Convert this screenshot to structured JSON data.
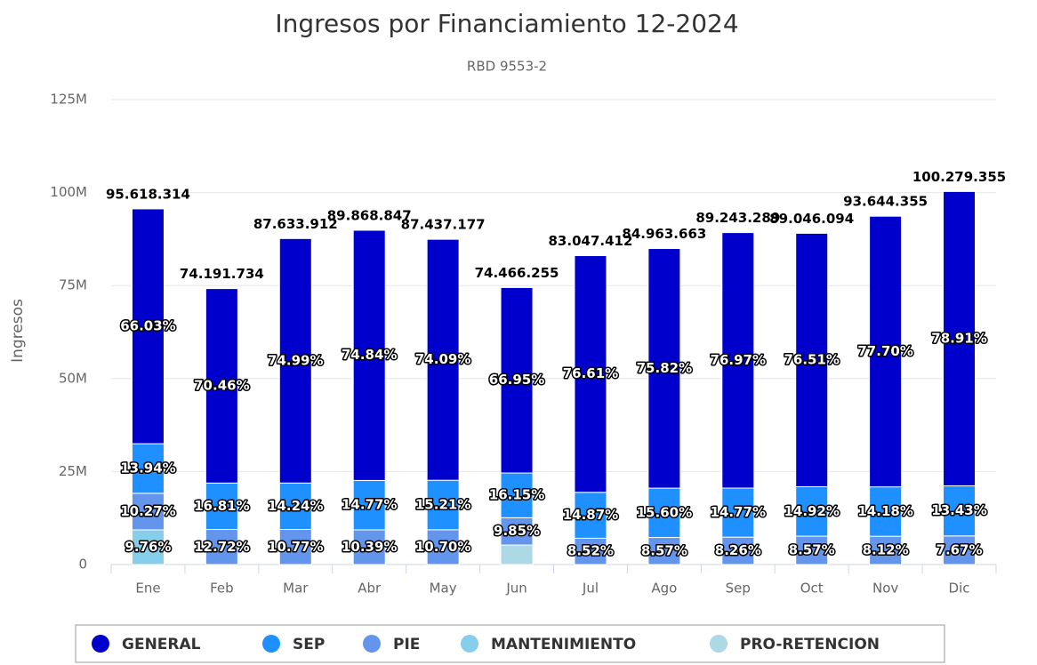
{
  "chart_data": {
    "type": "stacked_bar",
    "title": "Ingresos por Financiamiento 12-2024",
    "subtitle": "RBD 9553-2",
    "y_label": "Ingresos",
    "categories": [
      "Ene",
      "Feb",
      "Mar",
      "Abr",
      "May",
      "Jun",
      "Jul",
      "Ago",
      "Sep",
      "Oct",
      "Nov",
      "Dic"
    ],
    "ylim": [
      0,
      125000000
    ],
    "yticks": [
      0,
      {
        "value": 25000000,
        "label": "25M"
      },
      {
        "value": 50000000,
        "label": "50M"
      },
      {
        "value": 75000000,
        "label": "75M"
      },
      {
        "value": 100000000,
        "label": "100M"
      },
      {
        "value": 125000000,
        "label": "125M"
      }
    ],
    "grid": true,
    "stack_labels": [
      "95.618.314",
      "74.191.734",
      "87.633.912",
      "89.868.847",
      "87.437.177",
      "74.466.255",
      "83.047.412",
      "84.963.663",
      "89.243.289",
      "89.046.094",
      "93.644.355",
      "100.279.355"
    ],
    "series": [
      {
        "name": "GENERAL",
        "color": "#0000cd",
        "values": [
          63137000,
          52276000,
          65717000,
          67258000,
          64782000,
          49855000,
          63622000,
          64420000,
          68690000,
          68129000,
          72761000,
          79130000
        ],
        "labels": [
          "66.03%",
          "70.46%",
          "74.99%",
          "74.84%",
          "74.09%",
          "66.95%",
          "76.61%",
          "75.82%",
          "76.97%",
          "76.51%",
          "77.70%",
          "78.91%"
        ]
      },
      {
        "name": "SEP",
        "color": "#1e90ff",
        "values": [
          13329000,
          12472000,
          12479000,
          13274000,
          13299000,
          12026000,
          12349000,
          13254000,
          13181000,
          13286000,
          13279000,
          13467000
        ],
        "labels": [
          "13.94%",
          "16.81%",
          "14.24%",
          "14.77%",
          "15.21%",
          "16.15%",
          "14.87%",
          "15.60%",
          "14.77%",
          "14.92%",
          "14.18%",
          "13.43%"
        ]
      },
      {
        "name": "PIE",
        "color": "#6495ed",
        "values": [
          9820000,
          9437000,
          9438000,
          9337000,
          9356000,
          7335000,
          7076000,
          7281000,
          7371000,
          7631000,
          7604000,
          7691000
        ],
        "labels": [
          "10.27%",
          "12.72%",
          "10.77%",
          "10.39%",
          "10.70%",
          "9.85%",
          "8.52%",
          "8.57%",
          "8.26%",
          "8.57%",
          "8.12%",
          "7.67%"
        ]
      },
      {
        "name": "MANTENIMIENTO",
        "color": "#87ceeb",
        "values": [
          9332000,
          0,
          0,
          0,
          0,
          0,
          0,
          0,
          0,
          0,
          0,
          0
        ],
        "labels": [
          "9.76%",
          null,
          null,
          null,
          null,
          null,
          null,
          null,
          null,
          null,
          null,
          null
        ]
      },
      {
        "name": "PRO-RETENCION",
        "color": "#add8e6",
        "values": [
          0,
          0,
          0,
          0,
          0,
          5250000,
          0,
          0,
          0,
          0,
          0,
          0
        ],
        "labels": [
          null,
          null,
          null,
          null,
          null,
          null,
          null,
          null,
          null,
          null,
          null,
          null
        ]
      }
    ]
  }
}
